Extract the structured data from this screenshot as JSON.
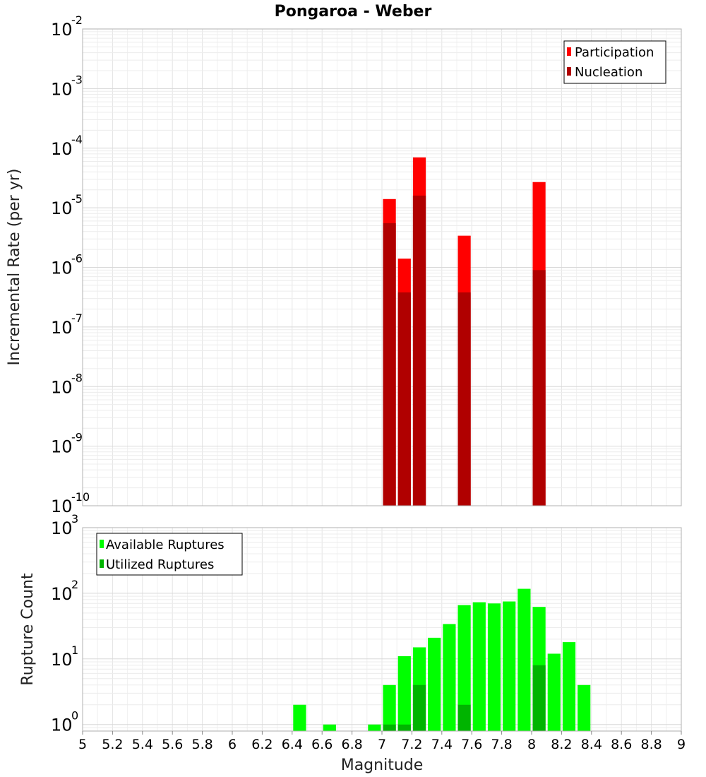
{
  "chart_data": [
    {
      "type": "bar",
      "title": "Pongaroa - Weber",
      "xlabel": "",
      "ylabel": "Incremental Rate (per yr)",
      "xlim": [
        5,
        9
      ],
      "y_scale": "log",
      "ylim_exp": [
        -10,
        -2
      ],
      "bin_width": 0.1,
      "legend_position": "top-right",
      "series": [
        {
          "name": "Participation",
          "color": "#ff0000",
          "x": [
            7.05,
            7.15,
            7.25,
            7.55,
            8.05
          ],
          "values": [
            1.4e-05,
            1.4e-06,
            7e-05,
            3.4e-06,
            2.7e-05
          ]
        },
        {
          "name": "Nucleation",
          "color": "#b00000",
          "x": [
            7.05,
            7.15,
            7.25,
            7.55,
            8.05
          ],
          "values": [
            5.5e-06,
            3.8e-07,
            1.6e-05,
            3.8e-07,
            9e-07
          ]
        }
      ]
    },
    {
      "type": "bar",
      "title": "",
      "xlabel": "Magnitude",
      "ylabel": "Rupture Count",
      "xlim": [
        5,
        9
      ],
      "y_scale": "log",
      "ylim_exp": [
        -0.1,
        3
      ],
      "bin_width": 0.1,
      "legend_position": "top-left",
      "x_ticks": [
        "5",
        "5.2",
        "5.4",
        "5.6",
        "5.8",
        "6",
        "6.2",
        "6.4",
        "6.6",
        "6.8",
        "7",
        "7.2",
        "7.4",
        "7.6",
        "7.8",
        "8",
        "8.2",
        "8.4",
        "8.6",
        "8.8",
        "9"
      ],
      "series": [
        {
          "name": "Available Ruptures",
          "color": "#00ff00",
          "x": [
            6.45,
            6.65,
            6.95,
            7.05,
            7.15,
            7.25,
            7.35,
            7.45,
            7.55,
            7.65,
            7.75,
            7.85,
            7.95,
            8.05,
            8.15,
            8.25,
            8.35
          ],
          "values": [
            2,
            1,
            1,
            4,
            11,
            15,
            21,
            34,
            66,
            73,
            70,
            75,
            117,
            62,
            12,
            18,
            4
          ]
        },
        {
          "name": "Utilized Ruptures",
          "color": "#00b400",
          "x": [
            7.05,
            7.15,
            7.25,
            7.55,
            8.05
          ],
          "values": [
            1,
            1,
            4,
            2,
            8
          ]
        }
      ]
    }
  ]
}
